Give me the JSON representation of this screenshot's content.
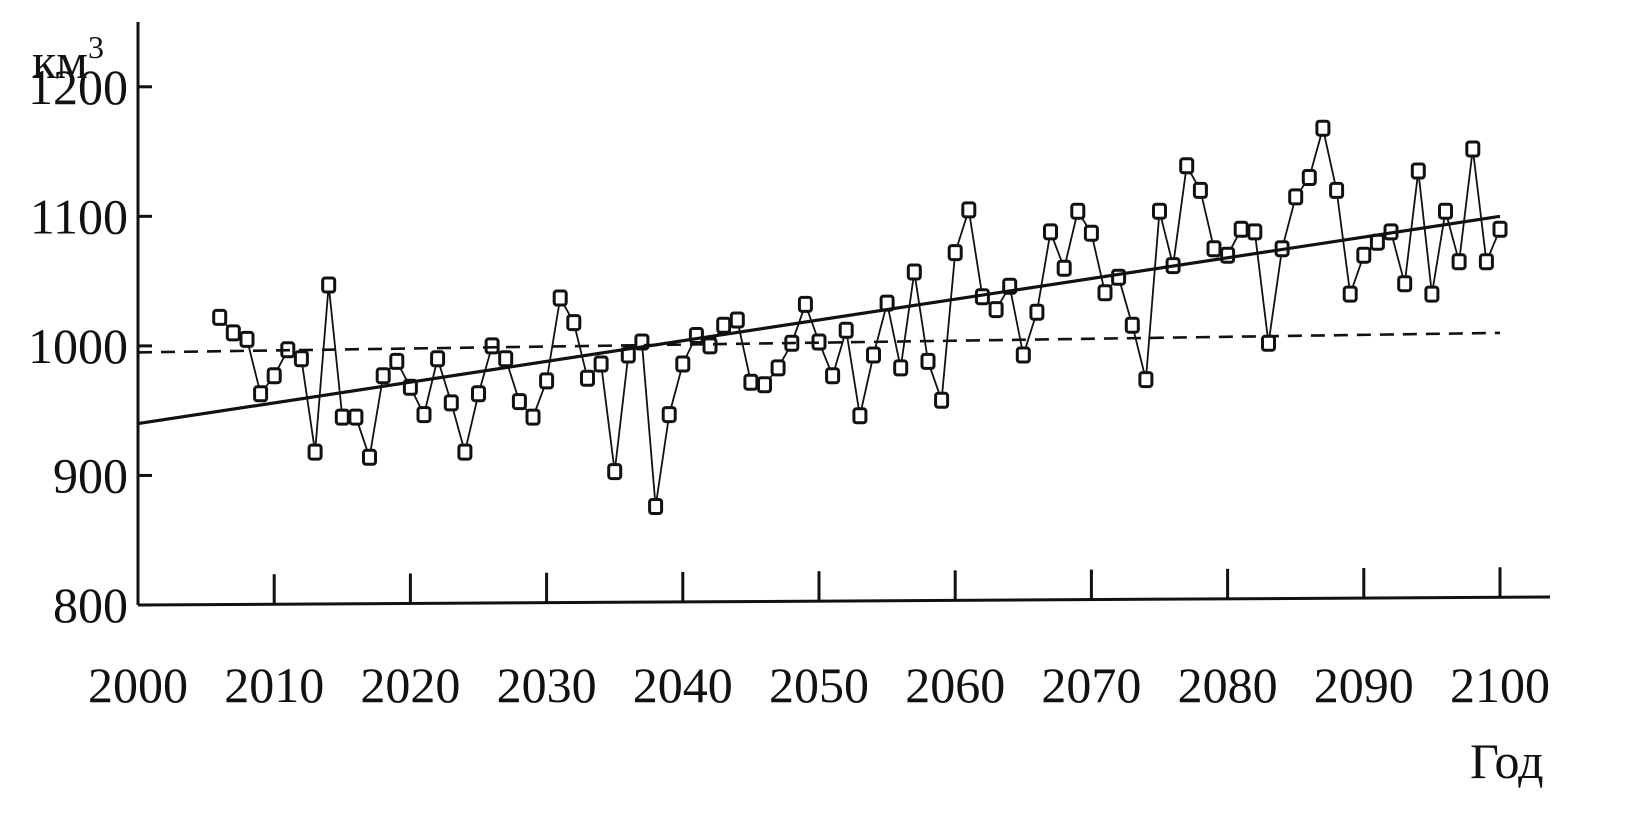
{
  "chart_data": {
    "type": "line",
    "xlabel": "Год",
    "ylabel": "км",
    "ylabel_superscript": "3",
    "xlim": [
      2000,
      2100
    ],
    "ylim": [
      800,
      1250
    ],
    "xticks": [
      2000,
      2010,
      2020,
      2030,
      2040,
      2050,
      2060,
      2070,
      2080,
      2090,
      2100
    ],
    "yticks": [
      800,
      900,
      1000,
      1100,
      1200
    ],
    "grid": false,
    "legend": "none",
    "series": [
      {
        "style": "line-with-square-markers",
        "color": "#111111",
        "x": [
          2006,
          2007,
          2008,
          2009,
          2010,
          2011,
          2012,
          2013,
          2014,
          2015,
          2016,
          2017,
          2018,
          2019,
          2020,
          2021,
          2022,
          2023,
          2024,
          2025,
          2026,
          2027,
          2028,
          2029,
          2030,
          2031,
          2032,
          2033,
          2034,
          2035,
          2036,
          2037,
          2038,
          2039,
          2040,
          2041,
          2042,
          2043,
          2044,
          2045,
          2046,
          2047,
          2048,
          2049,
          2050,
          2051,
          2052,
          2053,
          2054,
          2055,
          2056,
          2057,
          2058,
          2059,
          2060,
          2061,
          2062,
          2063,
          2064,
          2065,
          2066,
          2067,
          2068,
          2069,
          2070,
          2071,
          2072,
          2073,
          2074,
          2075,
          2076,
          2077,
          2078,
          2079,
          2080,
          2081,
          2082,
          2083,
          2084,
          2085,
          2086,
          2087,
          2088,
          2089,
          2090,
          2091,
          2092,
          2093,
          2094,
          2095,
          2096,
          2097,
          2098,
          2099,
          2100
        ],
        "y": [
          1022,
          1010,
          1005,
          963,
          977,
          997,
          990,
          918,
          1047,
          945,
          945,
          914,
          977,
          988,
          968,
          947,
          990,
          956,
          918,
          963,
          1000,
          990,
          957,
          945,
          973,
          1037,
          1018,
          975,
          986,
          903,
          993,
          1003,
          876,
          947,
          986,
          1008,
          1000,
          1016,
          1020,
          972,
          970,
          983,
          1002,
          1032,
          1003,
          977,
          1012,
          946,
          993,
          1033,
          983,
          1057,
          988,
          958,
          1072,
          1105,
          1038,
          1028,
          1046,
          993,
          1026,
          1088,
          1060,
          1104,
          1087,
          1041,
          1053,
          1016,
          974,
          1104,
          1062,
          1139,
          1120,
          1075,
          1070,
          1090,
          1088,
          1002,
          1075,
          1115,
          1130,
          1168,
          1120,
          1040,
          1070,
          1080,
          1088,
          1048,
          1135,
          1040,
          1104,
          1065,
          1152,
          1065,
          1090
        ]
      },
      {
        "style": "solid-trend",
        "color": "#111111",
        "x": [
          2000,
          2100
        ],
        "y": [
          940,
          1100
        ]
      },
      {
        "style": "dashed",
        "color": "#111111",
        "x": [
          2000,
          2100
        ],
        "y": [
          995,
          1010
        ]
      }
    ]
  }
}
